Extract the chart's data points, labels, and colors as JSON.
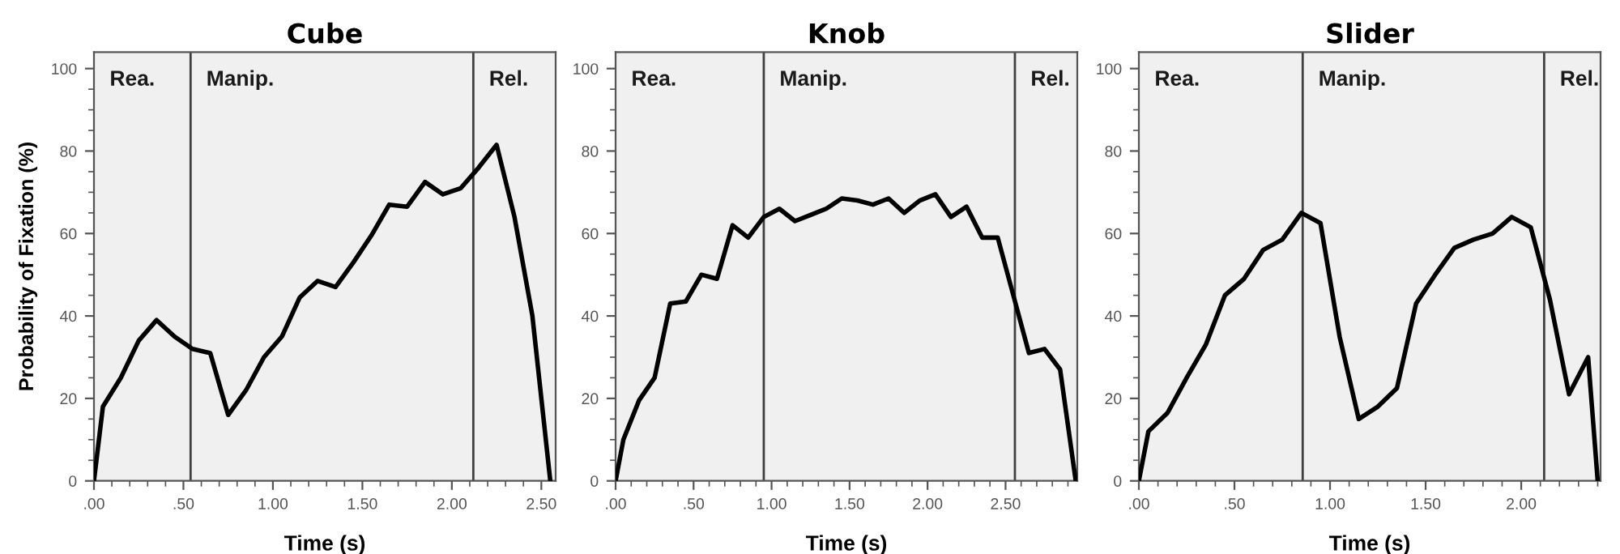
{
  "chart_data": [
    {
      "type": "line",
      "title": "Cube",
      "xlabel": "Time (s)",
      "ylabel": "Probability of Fixation (%)",
      "x": [
        0,
        0.05,
        0.15,
        0.25,
        0.35,
        0.45,
        0.55,
        0.65,
        0.75,
        0.85,
        0.95,
        1.05,
        1.15,
        1.25,
        1.35,
        1.45,
        1.55,
        1.65,
        1.75,
        1.85,
        1.95,
        2.05,
        2.15,
        2.25,
        2.35,
        2.45,
        2.55
      ],
      "series": [
        {
          "color": "#000000",
          "values": [
            0,
            18,
            25,
            34,
            39,
            35,
            32,
            31,
            16,
            22,
            30,
            35,
            44.5,
            48.5,
            47,
            53,
            59.5,
            67,
            66.5,
            72.5,
            69.5,
            71,
            76,
            81.5,
            64,
            40,
            0
          ]
        }
      ],
      "xlim": [
        0,
        2.58
      ],
      "ylim": [
        0,
        104
      ],
      "xticks": [
        {
          "value": 0,
          "label": ".00"
        },
        {
          "value": 0.5,
          "label": ".50"
        },
        {
          "value": 1,
          "label": "1.00"
        },
        {
          "value": 1.5,
          "label": "1.50"
        },
        {
          "value": 2,
          "label": "2.00"
        },
        {
          "value": 2.5,
          "label": "2.50"
        }
      ],
      "yticks": [
        0,
        20,
        40,
        60,
        80,
        100
      ],
      "bands": [
        {
          "axis": "x",
          "from": 0,
          "to": 0.54,
          "label": "Rea.",
          "color": "#f0f0f0"
        },
        {
          "axis": "x",
          "from": 0.54,
          "to": 2.12,
          "label": "Manip.",
          "color": "#f0f0f0"
        },
        {
          "axis": "x",
          "from": 2.12,
          "to": 2.58,
          "label": "Rel.",
          "color": "#f0f0f0"
        }
      ],
      "ref_lines": [
        {
          "axis": "x",
          "value": 0.54,
          "color": "#404040"
        },
        {
          "axis": "x",
          "value": 2.12,
          "color": "#404040"
        }
      ],
      "marker": "none",
      "line_style": "solid",
      "grid": false,
      "legend": false
    },
    {
      "type": "line",
      "title": "Knob",
      "xlabel": "Time (s)",
      "x": [
        0,
        0.05,
        0.15,
        0.25,
        0.35,
        0.45,
        0.55,
        0.65,
        0.75,
        0.85,
        0.95,
        1.05,
        1.15,
        1.25,
        1.35,
        1.45,
        1.55,
        1.65,
        1.75,
        1.85,
        1.95,
        2.05,
        2.15,
        2.25,
        2.35,
        2.45,
        2.55,
        2.65,
        2.75,
        2.85,
        2.95
      ],
      "series": [
        {
          "color": "#000000",
          "values": [
            0,
            10,
            19.5,
            25,
            43,
            43.5,
            50,
            49,
            62,
            59,
            64,
            66,
            63,
            64.5,
            66,
            68.5,
            68,
            67,
            68.5,
            65,
            68,
            69.5,
            64,
            66.5,
            59,
            59,
            45,
            31,
            32,
            27,
            0
          ]
        }
      ],
      "xlim": [
        0,
        2.96
      ],
      "ylim": [
        0,
        104
      ],
      "xticks": [
        {
          "value": 0,
          "label": ".00"
        },
        {
          "value": 0.5,
          "label": ".50"
        },
        {
          "value": 1,
          "label": "1.00"
        },
        {
          "value": 1.5,
          "label": "1.50"
        },
        {
          "value": 2,
          "label": "2.00"
        },
        {
          "value": 2.5,
          "label": "2.50"
        }
      ],
      "yticks": [
        0,
        20,
        40,
        60,
        80,
        100
      ],
      "bands": [
        {
          "axis": "x",
          "from": 0,
          "to": 0.95,
          "label": "Rea.",
          "color": "#f0f0f0"
        },
        {
          "axis": "x",
          "from": 0.95,
          "to": 2.56,
          "label": "Manip.",
          "color": "#f0f0f0"
        },
        {
          "axis": "x",
          "from": 2.56,
          "to": 2.96,
          "label": "Rel.",
          "color": "#f0f0f0"
        }
      ],
      "ref_lines": [
        {
          "axis": "x",
          "value": 0.95,
          "color": "#404040"
        },
        {
          "axis": "x",
          "value": 2.56,
          "color": "#404040"
        }
      ],
      "marker": "none",
      "line_style": "solid",
      "grid": false,
      "legend": false
    },
    {
      "type": "line",
      "title": "Slider",
      "xlabel": "Time (s)",
      "x": [
        0,
        0.05,
        0.15,
        0.25,
        0.35,
        0.45,
        0.55,
        0.65,
        0.75,
        0.85,
        0.95,
        1.05,
        1.15,
        1.25,
        1.35,
        1.45,
        1.55,
        1.65,
        1.75,
        1.85,
        1.95,
        2.05,
        2.15,
        2.25,
        2.35,
        2.4
      ],
      "series": [
        {
          "color": "#000000",
          "values": [
            0,
            12,
            16.5,
            25,
            33,
            45,
            49,
            56,
            58.5,
            65,
            62.5,
            35,
            15,
            18,
            22.5,
            43,
            50,
            56.5,
            58.5,
            60,
            64,
            61.5,
            44,
            21,
            30,
            0
          ]
        }
      ],
      "xlim": [
        0,
        2.415
      ],
      "ylim": [
        0,
        104
      ],
      "xticks": [
        {
          "value": 0,
          "label": ".00"
        },
        {
          "value": 0.5,
          "label": ".50"
        },
        {
          "value": 1,
          "label": "1.00"
        },
        {
          "value": 1.5,
          "label": "1.50"
        },
        {
          "value": 2,
          "label": "2.00"
        }
      ],
      "yticks": [
        0,
        20,
        40,
        60,
        80,
        100
      ],
      "bands": [
        {
          "axis": "x",
          "from": 0,
          "to": 0.857,
          "label": "Rea.",
          "color": "#f0f0f0"
        },
        {
          "axis": "x",
          "from": 0.857,
          "to": 2.12,
          "label": "Manip.",
          "color": "#f0f0f0"
        },
        {
          "axis": "x",
          "from": 2.12,
          "to": 2.415,
          "label": "Rel.",
          "color": "#f0f0f0"
        }
      ],
      "ref_lines": [
        {
          "axis": "x",
          "value": 0.857,
          "color": "#404040"
        },
        {
          "axis": "x",
          "value": 2.12,
          "color": "#404040"
        }
      ],
      "marker": "none",
      "line_style": "solid",
      "grid": false,
      "legend": false
    }
  ]
}
